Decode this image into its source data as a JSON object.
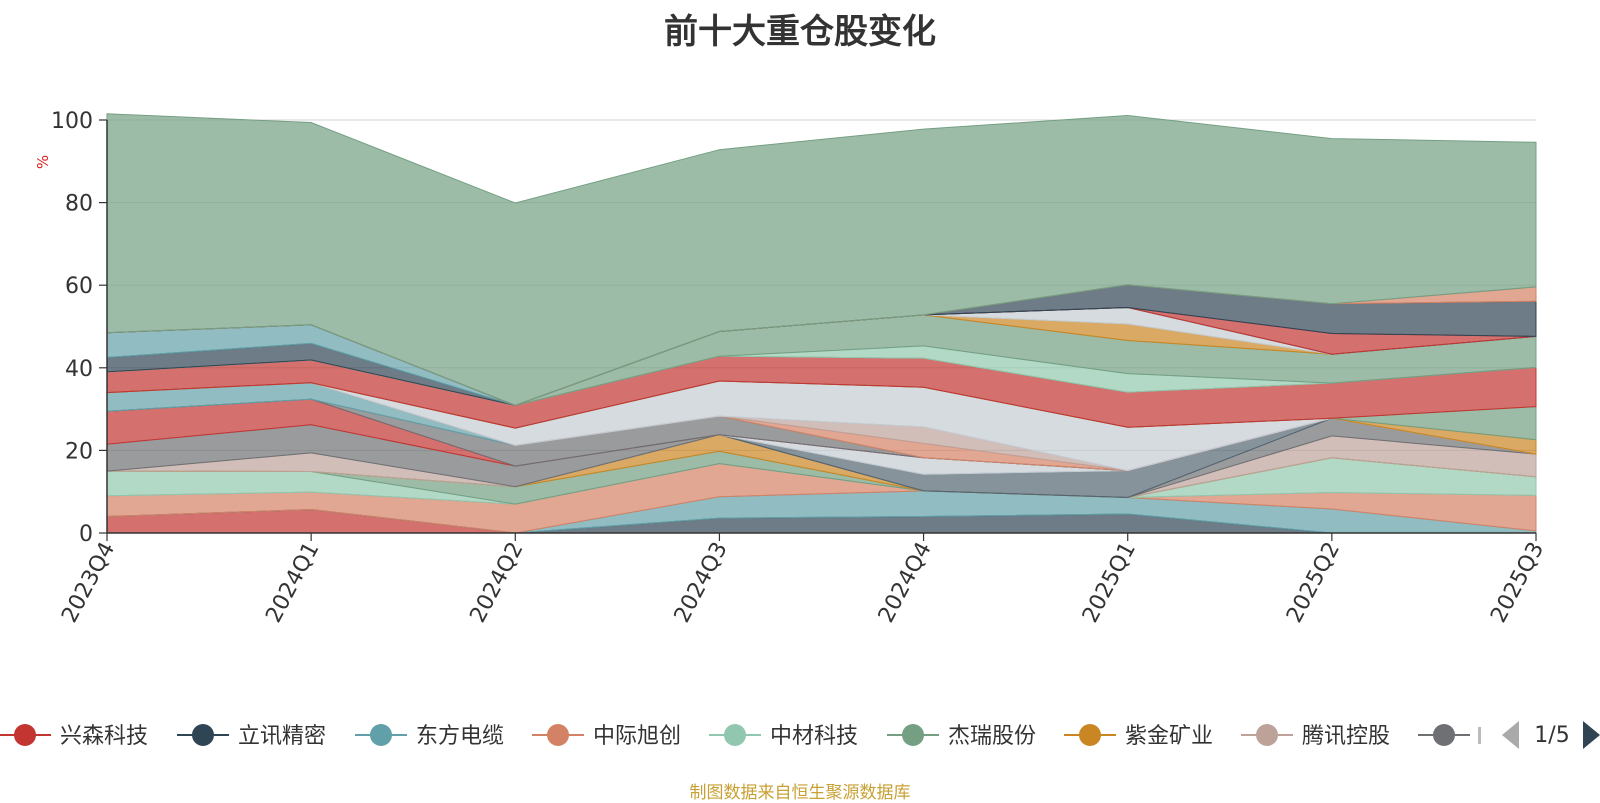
{
  "chart_data": {
    "type": "area",
    "title": "前十大重仓股变化",
    "ylabel": "%",
    "xlabel": "",
    "ylim": [
      0,
      100
    ],
    "yticks": [
      0,
      20,
      40,
      60,
      80,
      100
    ],
    "categories": [
      "2023Q4",
      "2024Q1",
      "2024Q2",
      "2024Q3",
      "2024Q4",
      "2025Q1",
      "2025Q2",
      "2025Q3"
    ],
    "stacked": true,
    "grid": true,
    "legend_position": "bottom",
    "series": [
      {
        "name": "兴森科技",
        "color": "#c23531",
        "values": [
          4.0,
          5.7,
          0,
          0,
          0,
          0,
          0,
          0
        ]
      },
      {
        "name": "立讯精密",
        "color": "#2f4554",
        "values": [
          0,
          0,
          0,
          3.6,
          4.0,
          4.6,
          0,
          0
        ]
      },
      {
        "name": "东方电缆",
        "color": "#61a0a8",
        "values": [
          0,
          0,
          0,
          5.2,
          6.2,
          4.0,
          5.8,
          0.5
        ]
      },
      {
        "name": "中际旭创",
        "color": "#d48265",
        "values": [
          5.0,
          4.2,
          7.0,
          8.0,
          0,
          0,
          4.0,
          8.6
        ]
      },
      {
        "name": "中材科技",
        "color": "#91c7ae",
        "values": [
          6.0,
          5.0,
          0,
          0,
          0,
          0,
          8.4,
          4.5
        ]
      },
      {
        "name": "杰瑞股份",
        "color": "#749f83",
        "values": [
          0,
          0,
          4.2,
          3.0,
          0,
          0,
          0,
          0
        ]
      },
      {
        "name": "紫金矿业",
        "color": "#ca8622",
        "values": [
          0,
          0,
          0,
          4.0,
          0,
          0,
          0,
          0
        ]
      },
      {
        "name": "腾讯控股",
        "color": "#bda29a",
        "values": [
          0,
          4.5,
          0,
          0,
          0,
          0,
          5.3,
          5.5
        ]
      },
      {
        "name": "",
        "color": "#6e7074",
        "values": [
          6.5,
          6.8,
          5.0,
          0,
          0,
          0,
          4.3,
          0
        ]
      },
      {
        "name": "",
        "color": "#546570",
        "values": [
          0,
          0,
          0,
          0,
          4.0,
          6.5,
          0,
          0
        ]
      },
      {
        "name": "",
        "color": "#c4ccd3",
        "values": [
          0,
          0,
          0,
          0,
          4.0,
          0,
          0,
          0
        ]
      },
      {
        "name": "",
        "color": "#c23531",
        "values": [
          8.0,
          6.2,
          0,
          0,
          0,
          0,
          0,
          0
        ]
      },
      {
        "name": "",
        "color": "#6e7074",
        "values": [
          0,
          0,
          5.0,
          4.5,
          0,
          0,
          0,
          0
        ]
      },
      {
        "name": "",
        "color": "#61a0a8",
        "values": [
          4.5,
          4.0,
          0,
          0,
          0,
          0,
          0,
          0
        ]
      },
      {
        "name": "",
        "color": "#d48265",
        "values": [
          0,
          0,
          0,
          0,
          3.5,
          0,
          0,
          0
        ]
      },
      {
        "name": "",
        "color": "#bda29a",
        "values": [
          0,
          0,
          0,
          0,
          4.0,
          0,
          0,
          0
        ]
      },
      {
        "name": "",
        "color": "#c4ccd3",
        "values": [
          0,
          0,
          4.2,
          8.5,
          9.6,
          10.5,
          0,
          0
        ]
      },
      {
        "name": "",
        "color": "#ca8622",
        "values": [
          0,
          0,
          0,
          0,
          0,
          0,
          0,
          3.5
        ]
      },
      {
        "name": "",
        "color": "#749f83",
        "values": [
          0,
          0,
          0,
          0,
          0,
          0,
          0,
          8.0
        ]
      },
      {
        "name": "",
        "color": "#c23531",
        "values": [
          5.0,
          5.5,
          5.5,
          6.0,
          7.0,
          8.5,
          8.5,
          9.5
        ]
      },
      {
        "name": "",
        "color": "#91c7ae",
        "values": [
          0,
          0,
          0,
          0,
          3.0,
          4.5,
          0,
          0
        ]
      },
      {
        "name": "",
        "color": "#749f83",
        "values": [
          0,
          0,
          0,
          6.0,
          7.5,
          8.0,
          7.0,
          7.5
        ]
      },
      {
        "name": "",
        "color": "#ca8622",
        "values": [
          0,
          0,
          0,
          0,
          0,
          4.0,
          0,
          0
        ]
      },
      {
        "name": "",
        "color": "#c4ccd3",
        "values": [
          0,
          0,
          0,
          0,
          0,
          4.0,
          0,
          0
        ]
      },
      {
        "name": "",
        "color": "#2f4554",
        "values": [
          3.5,
          4.0,
          0,
          0,
          0,
          0,
          0,
          0
        ]
      },
      {
        "name": "",
        "color": "#61a0a8",
        "values": [
          6.0,
          4.5,
          0,
          0,
          0,
          0,
          0,
          0
        ]
      },
      {
        "name": "",
        "color": "#c23531",
        "values": [
          0,
          0,
          0,
          0,
          0,
          0,
          5.0,
          0
        ]
      },
      {
        "name": "",
        "color": "#2f4554",
        "values": [
          0,
          0,
          0,
          0,
          0,
          5.5,
          7.2,
          8.5
        ]
      },
      {
        "name": "",
        "color": "#d48265",
        "values": [
          0,
          0,
          0,
          0,
          0,
          0,
          0,
          3.5
        ]
      },
      {
        "name": "",
        "color": "#749f83",
        "values": [
          53.0,
          49.0,
          49.0,
          44.0,
          45.0,
          41.0,
          40.0,
          35.0
        ]
      }
    ]
  },
  "legend": {
    "page_indicator": "1/5",
    "prev_icon": "triangle-left-icon",
    "next_icon": "triangle-right-icon"
  },
  "source_note": "制图数据来自恒生聚源数据库"
}
